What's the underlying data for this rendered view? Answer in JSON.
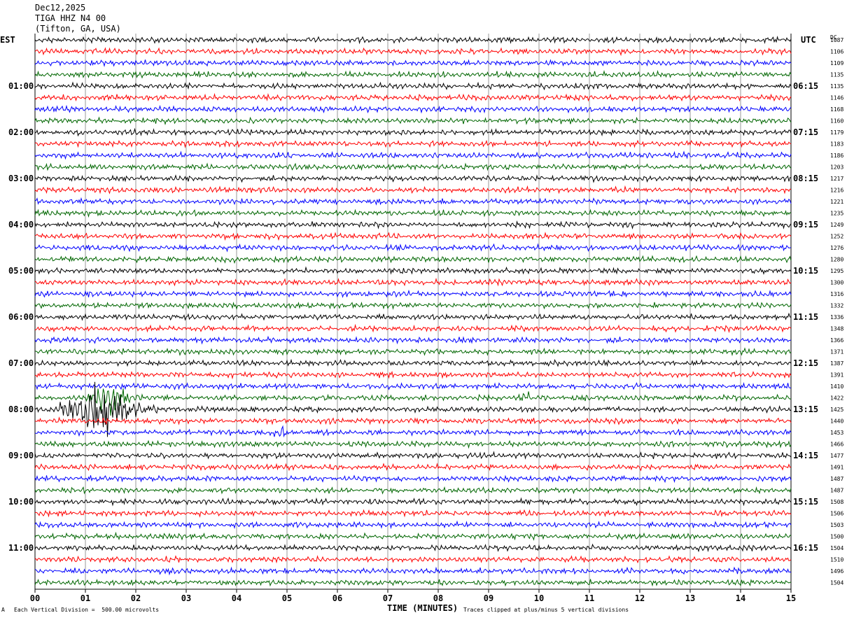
{
  "header": {
    "date": "Dec12,2025",
    "station": "TIGA HHZ N4 00",
    "location": "(Tifton, GA, USA)",
    "left_tz": "EST",
    "right_tz": "UTC",
    "right_col_label": "DC"
  },
  "footer": {
    "scale_note": "Each Vertical Division =  500.00 microvolts",
    "clip_note": "Traces clipped at plus/minus 5 vertical divisions",
    "corner_mark": "A"
  },
  "chart_data": {
    "type": "line",
    "xlabel": "TIME (MINUTES)",
    "x_ticks": [
      "00",
      "01",
      "02",
      "03",
      "04",
      "05",
      "06",
      "07",
      "08",
      "09",
      "10",
      "11",
      "12",
      "13",
      "14",
      "15"
    ],
    "xlim": [
      0,
      15
    ],
    "grid": "vertical lines each minute",
    "trace_colors": [
      "#000000",
      "#ff0000",
      "#0000ff",
      "#006600"
    ],
    "left_hour_labels": [
      "01:00",
      "02:00",
      "03:00",
      "04:00",
      "05:00",
      "06:00",
      "07:00",
      "08:00",
      "09:00",
      "10:00",
      "11:00"
    ],
    "right_hour_labels": [
      "06:15",
      "07:15",
      "08:15",
      "09:15",
      "10:15",
      "11:15",
      "12:15",
      "13:15",
      "14:15",
      "15:15",
      "16:15"
    ],
    "dc_offsets": [
      "1087",
      "1106",
      "1109",
      "1135",
      "1135",
      "1146",
      "1168",
      "1160",
      "1179",
      "1183",
      "1186",
      "1203",
      "1217",
      "1216",
      "1221",
      "1235",
      "1249",
      "1252",
      "1276",
      "1280",
      "1295",
      "1300",
      "1316",
      "1332",
      "1336",
      "1348",
      "1366",
      "1371",
      "1387",
      "1391",
      "1410",
      "1422",
      "1425",
      "1440",
      "1453",
      "1466",
      "1477",
      "1491",
      "1487",
      "1487",
      "1508",
      "1506",
      "1503",
      "1500",
      "1504",
      "1510",
      "1496",
      "1504"
    ],
    "events": [
      {
        "trace_index": 32,
        "start_min": 0.5,
        "end_min": 2.6,
        "peak_min": 1.4,
        "amplitude": "large, clipped"
      },
      {
        "trace_index": 31,
        "start_min": 1.0,
        "end_min": 2.4,
        "peak_min": 1.5,
        "amplitude": "large"
      },
      {
        "trace_index": 31,
        "start_min": 9.5,
        "end_min": 10.0,
        "peak_min": 9.8,
        "amplitude": "moderate"
      },
      {
        "trace_index": 34,
        "start_min": 4.6,
        "end_min": 5.2,
        "peak_min": 4.9,
        "amplitude": "moderate"
      },
      {
        "trace_index": 36,
        "start_min": 9.0,
        "end_min": 9.3,
        "peak_min": 9.1,
        "amplitude": "small"
      },
      {
        "trace_index": 36,
        "start_min": 12.1,
        "end_min": 12.5,
        "peak_min": 12.3,
        "amplitude": "small"
      },
      {
        "trace_index": 38,
        "start_min": 1.0,
        "end_min": 1.3,
        "peak_min": 1.1,
        "amplitude": "small"
      },
      {
        "trace_index": 38,
        "start_min": 13.4,
        "end_min": 13.8,
        "peak_min": 13.6,
        "amplitude": "small"
      }
    ]
  }
}
